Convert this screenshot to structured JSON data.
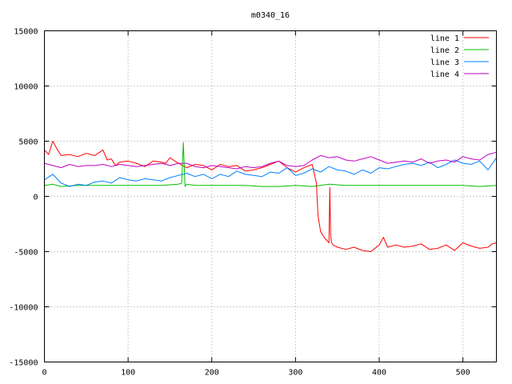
{
  "chart_data": {
    "type": "line",
    "title": "m0340_16",
    "xlabel": "",
    "ylabel": "",
    "xlim": [
      0,
      540
    ],
    "ylim": [
      -15000,
      15000
    ],
    "xticks": [
      0,
      100,
      200,
      300,
      400,
      500
    ],
    "yticks": [
      -15000,
      -10000,
      -5000,
      0,
      5000,
      10000,
      15000
    ],
    "grid": true,
    "legend_position": "top-right",
    "series": [
      {
        "name": "line 1",
        "color": "#ff0000",
        "x": [
          0,
          5,
          10,
          15,
          20,
          30,
          40,
          50,
          60,
          70,
          75,
          80,
          85,
          90,
          100,
          110,
          120,
          130,
          140,
          145,
          150,
          160,
          170,
          180,
          190,
          200,
          210,
          220,
          230,
          240,
          250,
          260,
          270,
          280,
          290,
          300,
          310,
          320,
          325,
          327,
          330,
          335,
          340,
          341,
          342,
          343,
          345,
          350,
          360,
          370,
          380,
          390,
          400,
          405,
          410,
          420,
          430,
          440,
          450,
          460,
          470,
          480,
          490,
          500,
          510,
          520,
          530,
          535,
          540
        ],
        "y": [
          4200,
          3800,
          5000,
          4300,
          3700,
          3800,
          3600,
          3900,
          3700,
          4200,
          3300,
          3400,
          2800,
          3100,
          3200,
          3000,
          2700,
          3200,
          3100,
          3000,
          3500,
          3000,
          2600,
          2900,
          2800,
          2400,
          2900,
          2700,
          2800,
          2300,
          2400,
          2600,
          2900,
          3200,
          2600,
          2200,
          2600,
          2900,
          1200,
          -1800,
          -3200,
          -3800,
          -4200,
          800,
          -3500,
          -4200,
          -4400,
          -4600,
          -4800,
          -4600,
          -4900,
          -5000,
          -4400,
          -3700,
          -4600,
          -4400,
          -4600,
          -4500,
          -4300,
          -4800,
          -4700,
          -4400,
          -4900,
          -4200,
          -4500,
          -4700,
          -4600,
          -4300,
          -4200
        ]
      },
      {
        "name": "line 2",
        "color": "#00c000",
        "x": [
          0,
          10,
          20,
          40,
          60,
          80,
          100,
          120,
          140,
          160,
          164,
          166,
          168,
          170,
          180,
          200,
          220,
          240,
          260,
          280,
          300,
          320,
          340,
          360,
          380,
          400,
          420,
          440,
          460,
          480,
          500,
          520,
          540
        ],
        "y": [
          1000,
          1100,
          900,
          1000,
          1000,
          1000,
          1000,
          1000,
          1000,
          1100,
          1200,
          4900,
          900,
          1100,
          1000,
          1000,
          1000,
          1000,
          900,
          900,
          1000,
          900,
          1100,
          1000,
          1000,
          1000,
          1000,
          1000,
          1000,
          1000,
          1000,
          900,
          1000
        ]
      },
      {
        "name": "line 3",
        "color": "#0080ff",
        "x": [
          0,
          10,
          20,
          30,
          40,
          50,
          60,
          70,
          80,
          90,
          100,
          110,
          120,
          130,
          140,
          150,
          160,
          170,
          180,
          190,
          200,
          210,
          220,
          230,
          240,
          250,
          260,
          270,
          280,
          290,
          300,
          310,
          320,
          330,
          340,
          350,
          360,
          370,
          380,
          390,
          400,
          410,
          420,
          430,
          440,
          450,
          460,
          470,
          480,
          490,
          500,
          510,
          520,
          530,
          540
        ],
        "y": [
          1500,
          2000,
          1200,
          900,
          1100,
          1000,
          1300,
          1400,
          1200,
          1700,
          1500,
          1400,
          1600,
          1500,
          1400,
          1700,
          1900,
          2100,
          1800,
          2000,
          1600,
          2000,
          1800,
          2300,
          2000,
          1900,
          1800,
          2200,
          2100,
          2600,
          1900,
          2100,
          2500,
          2200,
          2700,
          2400,
          2300,
          2000,
          2400,
          2100,
          2600,
          2500,
          2700,
          2900,
          3000,
          2800,
          3100,
          2600,
          2900,
          3300,
          3000,
          2900,
          3200,
          2400,
          3500
        ]
      },
      {
        "name": "line 4",
        "color": "#c000c0",
        "x": [
          0,
          10,
          20,
          30,
          40,
          50,
          60,
          70,
          80,
          90,
          100,
          110,
          120,
          130,
          140,
          150,
          160,
          170,
          180,
          190,
          200,
          210,
          220,
          230,
          240,
          250,
          260,
          270,
          280,
          290,
          300,
          310,
          320,
          330,
          340,
          350,
          360,
          370,
          380,
          390,
          400,
          410,
          420,
          430,
          440,
          450,
          460,
          470,
          480,
          490,
          500,
          510,
          520,
          530,
          540
        ],
        "y": [
          3000,
          2800,
          2600,
          2900,
          2700,
          2800,
          2800,
          2900,
          2700,
          2900,
          2800,
          2700,
          2800,
          2900,
          3000,
          2800,
          3000,
          3000,
          2700,
          2600,
          2800,
          2700,
          2600,
          2500,
          2700,
          2600,
          2700,
          3000,
          3200,
          2800,
          2700,
          2800,
          3300,
          3700,
          3500,
          3600,
          3300,
          3200,
          3400,
          3600,
          3300,
          3000,
          3100,
          3200,
          3100,
          3400,
          3000,
          3200,
          3300,
          3100,
          3600,
          3400,
          3300,
          3800,
          4000
        ]
      }
    ]
  }
}
